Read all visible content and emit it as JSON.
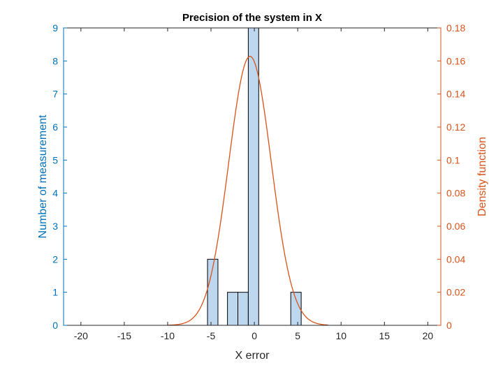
{
  "chart_data": {
    "type": "bar",
    "title": "Precision of the system in X",
    "xlabel": "X error",
    "ylabel_left": "Number of measurement",
    "ylabel_right": "Density function",
    "xlim": [
      -22,
      21.5
    ],
    "ylim_left": [
      0,
      9
    ],
    "ylim_right": [
      0,
      0.18
    ],
    "x_ticks": [
      -20,
      -15,
      -10,
      -5,
      0,
      5,
      10,
      15,
      20
    ],
    "y_ticks_left": [
      0,
      1,
      2,
      3,
      4,
      5,
      6,
      7,
      8,
      9
    ],
    "y_ticks_right": [
      "0",
      "0.02",
      "0.04",
      "0.06",
      "0.08",
      "0.1",
      "0.12",
      "0.14",
      "0.16",
      "0.18"
    ],
    "histogram": {
      "bin_width": 1.2,
      "bins": [
        {
          "left": -5.4,
          "count": 2
        },
        {
          "left": -3.1,
          "count": 1
        },
        {
          "left": -1.9,
          "count": 1
        },
        {
          "left": -0.7,
          "count": 9
        },
        {
          "left": 4.2,
          "count": 1
        }
      ]
    },
    "density_curve": {
      "mean": -0.5,
      "std": 2.45,
      "x_range": [
        -10,
        8.5
      ]
    },
    "grid": false,
    "colors": {
      "bars": "#BDD7EE",
      "bar_edge": "#000000",
      "curve": "#D95319",
      "left_axis": "#0072BD",
      "right_axis": "#D95319",
      "x_axis": "#262626"
    }
  }
}
